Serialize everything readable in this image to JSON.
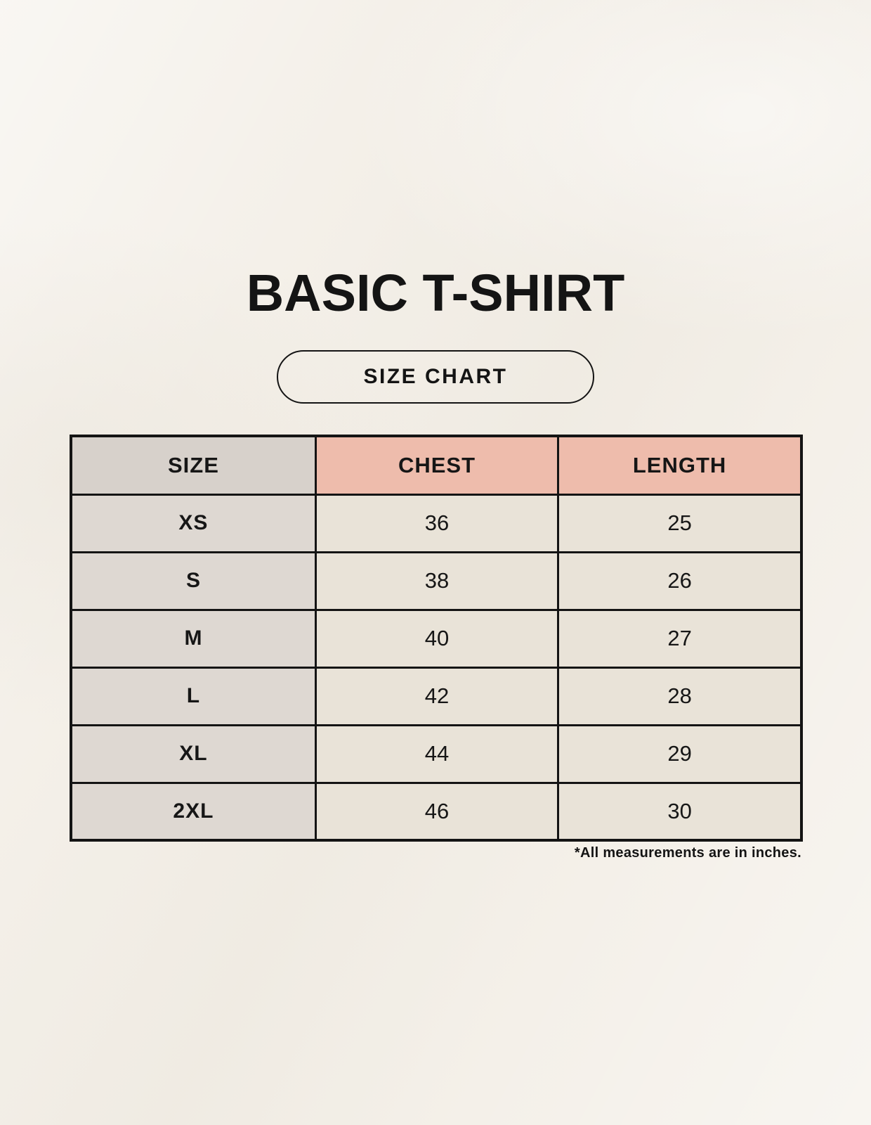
{
  "page": {
    "title": "BASIC T-SHIRT",
    "size_chart_button_label": "SIZE CHART",
    "footnote": "*All measurements are in inches."
  },
  "chart_data": {
    "type": "table",
    "title": "BASIC T-SHIRT — SIZE CHART",
    "columns": [
      "SIZE",
      "CHEST",
      "LENGTH"
    ],
    "units": "inches",
    "rows": [
      {
        "size": "XS",
        "chest": 36,
        "length": 25
      },
      {
        "size": "S",
        "chest": 38,
        "length": 26
      },
      {
        "size": "M",
        "chest": 40,
        "length": 27
      },
      {
        "size": "L",
        "chest": 42,
        "length": 28
      },
      {
        "size": "XL",
        "chest": 44,
        "length": 29
      },
      {
        "size": "2XL",
        "chest": 46,
        "length": 30
      }
    ]
  },
  "colors": {
    "page-bg": "#f4f0e9",
    "ink": "#141414",
    "header-gray": "#d7d1cb",
    "header-pink": "#eebcac",
    "row-label-bg": "#ded8d2",
    "cell-bg": "#e9e3d8"
  }
}
